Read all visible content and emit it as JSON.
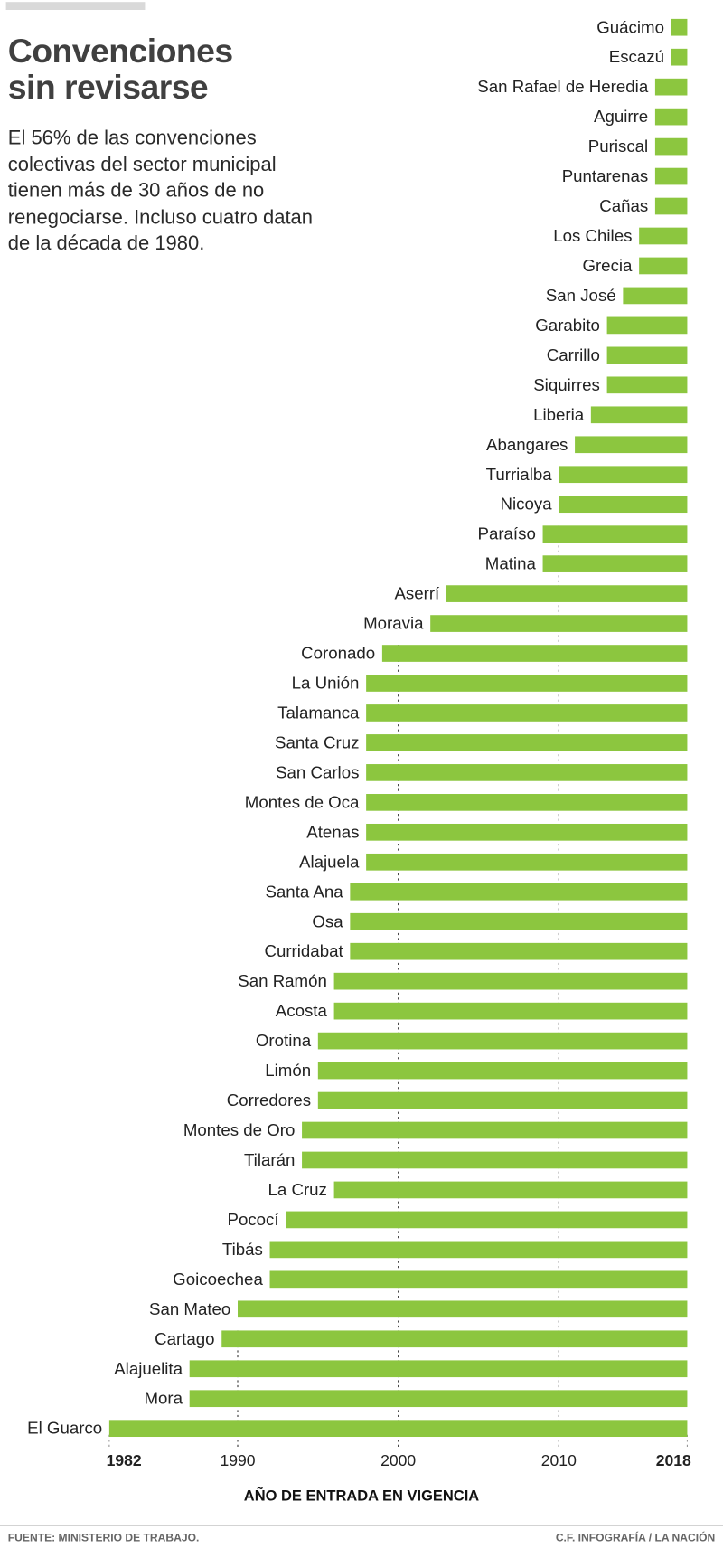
{
  "header": {
    "title_line1": "Convenciones",
    "title_line2": "sin revisarse",
    "description": "El 56% de las convenciones colectivas del sector municipal tienen más de 30 años de no renegociarse. Incluso cuatro datan de la década de 1980."
  },
  "footer": {
    "source": "FUENTE: MINISTERIO DE TRABAJO.",
    "credit": "C.F. INFOGRAFÍA / LA NACIÓN"
  },
  "chart_data": {
    "type": "bar",
    "orientation": "horizontal",
    "title": "Convenciones sin revisarse",
    "xlabel": "AÑO DE ENTRADA EN VIGENCIA",
    "xlim": [
      1982,
      2018
    ],
    "xticks": [
      {
        "value": 1982,
        "label": "1982",
        "bold": true
      },
      {
        "value": 1990,
        "label": "1990",
        "bold": false
      },
      {
        "value": 2000,
        "label": "2000",
        "bold": false
      },
      {
        "value": 2010,
        "label": "2010",
        "bold": false
      },
      {
        "value": 2018,
        "label": "2018",
        "bold": true
      }
    ],
    "gridlines": [
      1990,
      2000,
      2010
    ],
    "bar_color": "#8cc63f",
    "categories": [
      "Guácimo",
      "Escazú",
      "San Rafael de Heredia",
      "Aguirre",
      "Puriscal",
      "Puntarenas",
      "Cañas",
      "Los Chiles",
      "Grecia",
      "San José",
      "Garabito",
      "Carrillo",
      "Siquirres",
      "Liberia",
      "Abangares",
      "Turrialba",
      "Nicoya",
      "Paraíso",
      "Matina",
      "Aserrí",
      "Moravia",
      "Coronado",
      "La Unión",
      "Talamanca",
      "Santa Cruz",
      "San Carlos",
      "Montes de Oca",
      "Atenas",
      "Alajuela",
      "Santa Ana",
      "Osa",
      "Curridabat",
      "San Ramón",
      "Acosta",
      "Orotina",
      "Limón",
      "Corredores",
      "Montes de Oro",
      "Tilarán",
      "La Cruz",
      "Pococí",
      "Tibás",
      "Goicoechea",
      "San Mateo",
      "Cartago",
      "Alajuelita",
      "Mora",
      "El Guarco"
    ],
    "values": [
      2017,
      2017,
      2016,
      2016,
      2016,
      2016,
      2016,
      2015,
      2015,
      2014,
      2013,
      2013,
      2013,
      2012,
      2011,
      2010,
      2010,
      2009,
      2009,
      2003,
      2002,
      1999,
      1998,
      1998,
      1998,
      1998,
      1998,
      1998,
      1998,
      1997,
      1997,
      1997,
      1996,
      1996,
      1995,
      1995,
      1995,
      1994,
      1994,
      1996,
      1993,
      1992,
      1992,
      1990,
      1989,
      1987,
      1987,
      1982
    ]
  }
}
